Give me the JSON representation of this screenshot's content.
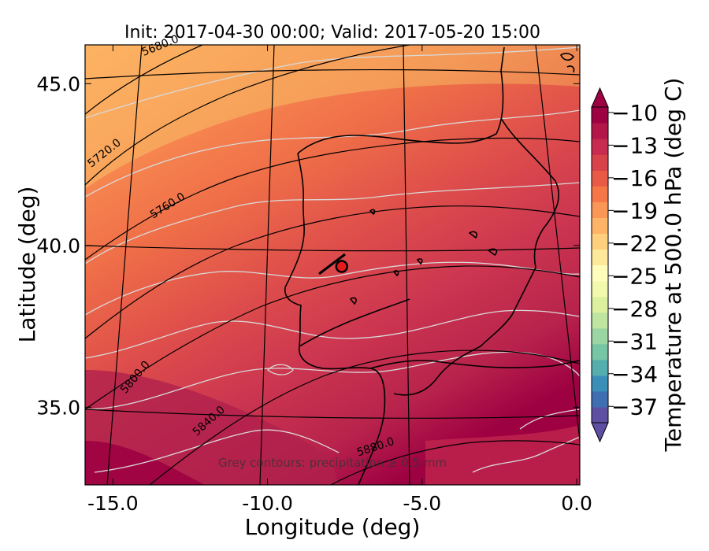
{
  "chart_data": {
    "type": "heatmap",
    "title": "Init: 2017-04-30 00:00; Valid: 2017-05-20 15:00",
    "xlabel": "Longitude (deg)",
    "ylabel": "Latitude (deg)",
    "x_ticks": [
      "-15.0",
      "-10.0",
      "-5.0",
      "0.0"
    ],
    "x_tick_values": [
      -15,
      -10,
      -5,
      0
    ],
    "y_ticks": [
      "35.0",
      "40.0",
      "45.0"
    ],
    "y_tick_values": [
      35,
      40,
      45
    ],
    "xlim": [
      -15.9,
      0.1
    ],
    "ylim": [
      32.6,
      46.2
    ],
    "colorbar": {
      "label": "Temperature at 500.0 hPa (deg C)",
      "ticks": [
        "−10",
        "−13",
        "−16",
        "−19",
        "−22",
        "−25",
        "−28",
        "−31",
        "−34",
        "−37"
      ],
      "tick_values": [
        -10,
        -13,
        -16,
        -19,
        -22,
        -25,
        -28,
        -31,
        -34,
        -37
      ],
      "range": [
        -38.5,
        -9.5
      ],
      "extend": "both",
      "colormap": "Spectral"
    },
    "height_contour_labels": [
      "5680.0",
      "5720.0",
      "5760.0",
      "5800.0",
      "5840.0",
      "5880.0"
    ],
    "height_contour_values": [
      5680,
      5720,
      5760,
      5800,
      5840,
      5880
    ],
    "annotation": "Grey contours: precipitation ≥ 0.5 mm",
    "marker": {
      "lon": -7.6,
      "lat": 39.35
    }
  },
  "colors": {
    "cold": "#fdb462",
    "warm": "#a50f45",
    "precip_contour": "#d9d9d9",
    "coast": "#000000",
    "marker": "#e41a1c"
  }
}
